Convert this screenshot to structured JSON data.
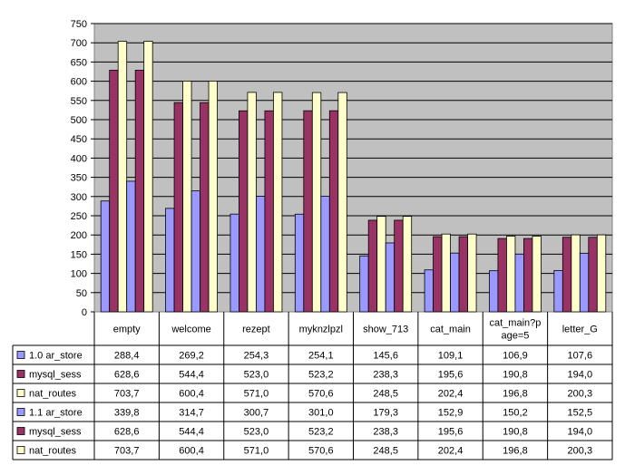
{
  "chart_data": {
    "type": "bar",
    "title": "",
    "xlabel": "",
    "ylabel": "",
    "ylim": [
      0,
      750
    ],
    "ytick_step": 50,
    "grid": true,
    "legend": "data table rows (left of table)",
    "categories": [
      "empty",
      "welcome",
      "rezept",
      "myknzlpzl",
      "show_713",
      "cat_main",
      "cat_main?p|age=5",
      "letter_G"
    ],
    "series": [
      {
        "name": "1.0 ar_store",
        "color": "#9999ff",
        "values": [
          288.4,
          269.2,
          254.3,
          254.1,
          145.6,
          109.1,
          106.9,
          107.6
        ],
        "labels": [
          "288,4",
          "269,2",
          "254,3",
          "254,1",
          "145,6",
          "109,1",
          "106,9",
          "107,6"
        ]
      },
      {
        "name": "mysql_sess",
        "color": "#993366",
        "values": [
          628.6,
          544.4,
          523.0,
          523.2,
          238.3,
          195.6,
          190.8,
          194.0
        ],
        "labels": [
          "628,6",
          "544,4",
          "523,0",
          "523,2",
          "238,3",
          "195,6",
          "190,8",
          "194,0"
        ]
      },
      {
        "name": "nat_routes",
        "color": "#ffffcc",
        "values": [
          703.7,
          600.4,
          571.0,
          570.6,
          248.5,
          202.4,
          196.8,
          200.3
        ],
        "labels": [
          "703,7",
          "600,4",
          "571,0",
          "570,6",
          "248,5",
          "202,4",
          "196,8",
          "200,3"
        ]
      },
      {
        "name": "1.1 ar_store",
        "color": "#9999ff",
        "values": [
          339.8,
          314.7,
          300.7,
          301.0,
          179.3,
          152.9,
          150.2,
          152.5
        ],
        "labels": [
          "339,8",
          "314,7",
          "300,7",
          "301,0",
          "179,3",
          "152,9",
          "150,2",
          "152,5"
        ]
      },
      {
        "name": "mysql_sess",
        "color": "#993366",
        "values": [
          628.6,
          544.4,
          523.0,
          523.2,
          238.3,
          195.6,
          190.8,
          194.0
        ],
        "labels": [
          "628,6",
          "544,4",
          "523,0",
          "523,2",
          "238,3",
          "195,6",
          "190,8",
          "194,0"
        ]
      },
      {
        "name": "nat_routes",
        "color": "#ffffcc",
        "values": [
          703.7,
          600.4,
          571.0,
          570.6,
          248.5,
          202.4,
          196.8,
          200.3
        ],
        "labels": [
          "703,7",
          "600,4",
          "571,0",
          "570,6",
          "248,5",
          "202,4",
          "196,8",
          "200,3"
        ]
      }
    ],
    "plot_background": "#c0c0c0"
  }
}
